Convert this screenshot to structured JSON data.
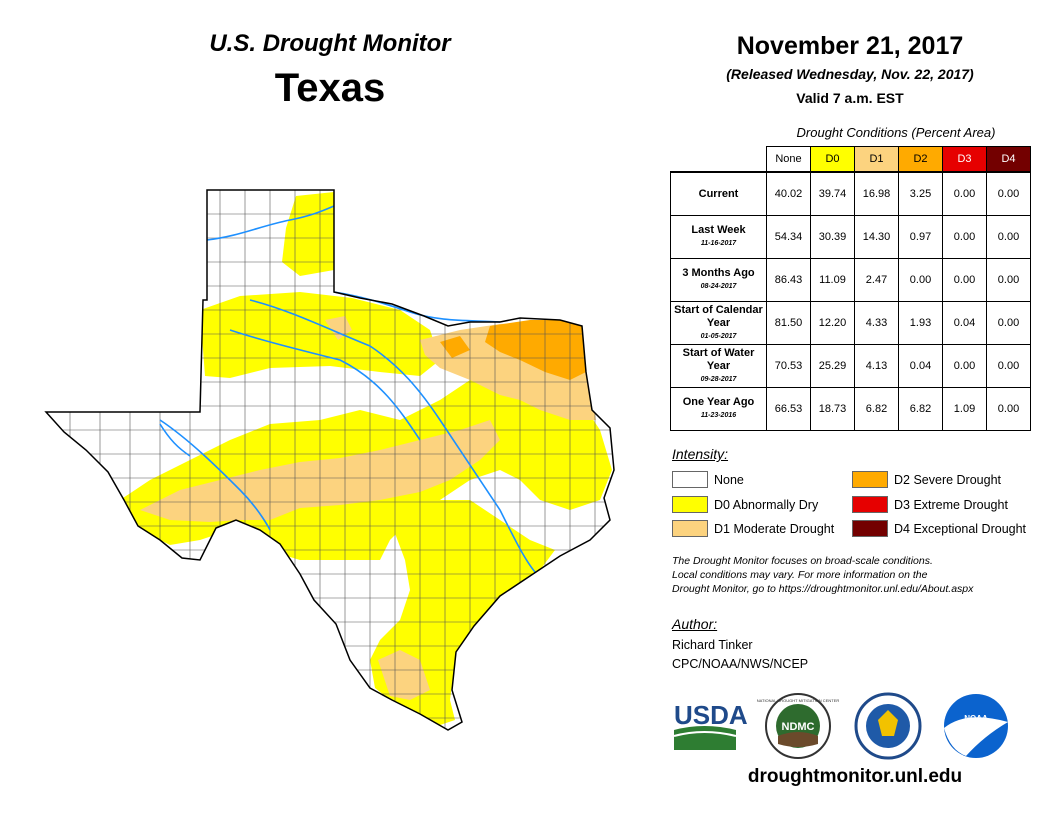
{
  "header": {
    "title": "U.S. Drought Monitor",
    "state": "Texas",
    "date": "November 21, 2017",
    "released": "(Released Wednesday, Nov. 22, 2017)",
    "valid": "Valid 7 a.m. EST"
  },
  "table": {
    "caption": "Drought Conditions (Percent Area)",
    "columns": [
      "None",
      "D0",
      "D1",
      "D2",
      "D3",
      "D4"
    ],
    "column_colors": [
      "#ffffff",
      "#ffff00",
      "#fcd37f",
      "#ffaa00",
      "#e60000",
      "#730000"
    ],
    "rows": [
      {
        "label": "Current",
        "date": "",
        "values": [
          "40.02",
          "39.74",
          "16.98",
          "3.25",
          "0.00",
          "0.00"
        ]
      },
      {
        "label": "Last Week",
        "date": "11-16-2017",
        "values": [
          "54.34",
          "30.39",
          "14.30",
          "0.97",
          "0.00",
          "0.00"
        ]
      },
      {
        "label": "3 Months Ago",
        "date": "08-24-2017",
        "values": [
          "86.43",
          "11.09",
          "2.47",
          "0.00",
          "0.00",
          "0.00"
        ]
      },
      {
        "label": "Start of Calendar Year",
        "date": "01-05-2017",
        "values": [
          "81.50",
          "12.20",
          "4.33",
          "1.93",
          "0.04",
          "0.00"
        ]
      },
      {
        "label": "Start of Water Year",
        "date": "09-28-2017",
        "values": [
          "70.53",
          "25.29",
          "4.13",
          "0.04",
          "0.00",
          "0.00"
        ]
      },
      {
        "label": "One Year Ago",
        "date": "11-23-2016",
        "values": [
          "66.53",
          "18.73",
          "6.82",
          "6.82",
          "1.09",
          "0.00"
        ]
      }
    ]
  },
  "legend": {
    "title": "Intensity:",
    "items": [
      {
        "label": "None",
        "color": "#ffffff"
      },
      {
        "label": "D0 Abnormally Dry",
        "color": "#ffff00"
      },
      {
        "label": "D1 Moderate Drought",
        "color": "#fcd37f"
      },
      {
        "label": "D2 Severe Drought",
        "color": "#ffaa00"
      },
      {
        "label": "D3 Extreme Drought",
        "color": "#e60000"
      },
      {
        "label": "D4 Exceptional Drought",
        "color": "#730000"
      }
    ]
  },
  "note": {
    "line1": "The Drought Monitor focuses on broad-scale conditions.",
    "line2": "Local conditions may vary. For more information on the",
    "line3": "Drought Monitor, go to https://droughtmonitor.unl.edu/About.aspx"
  },
  "author": {
    "title": "Author:",
    "name": "Richard Tinker",
    "org": "CPC/NOAA/NWS/NCEP"
  },
  "logos": {
    "usda": "USDA",
    "ndmc": "NDMC",
    "noaa": "NOAA",
    "ndmc_ring": "NATIONAL DROUGHT MITIGATION CENTER"
  },
  "footer": {
    "site": "droughtmonitor.unl.edu"
  }
}
